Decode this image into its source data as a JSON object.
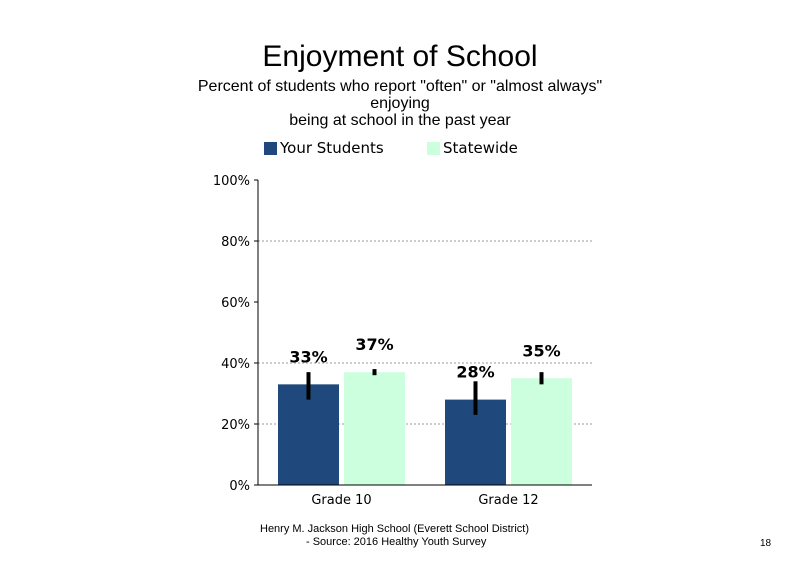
{
  "chart_data": {
    "type": "bar",
    "title": "Enjoyment of School",
    "subtitle_lines": [
      "Percent of students  who report \"often\" or \"almost always\"",
      "enjoying",
      "being at school in the past year"
    ],
    "categories": [
      "Grade 10",
      "Grade 12"
    ],
    "series": [
      {
        "name": "Your Students",
        "color": "#1F497D",
        "values": [
          33,
          28
        ],
        "labels": [
          "33%",
          "28%"
        ],
        "error_low": [
          28,
          23
        ],
        "error_high": [
          37,
          34
        ]
      },
      {
        "name": "Statewide",
        "color": "#CCFFDD",
        "values": [
          37,
          35
        ],
        "labels": [
          "37%",
          "35%"
        ],
        "error_low": [
          36,
          33
        ],
        "error_high": [
          38,
          37
        ]
      }
    ],
    "y_ticks": [
      {
        "value": 0,
        "label": "0%"
      },
      {
        "value": 20,
        "label": "20%"
      },
      {
        "value": 40,
        "label": "40%"
      },
      {
        "value": 60,
        "label": "60%"
      },
      {
        "value": 80,
        "label": "80%"
      },
      {
        "value": 100,
        "label": "100%"
      }
    ],
    "ylim": [
      0,
      100
    ],
    "gridlines": [
      20,
      40,
      80
    ],
    "legend_position": "top"
  },
  "footer": {
    "line1": "Henry M.  Jackson High  School (Everett School District)",
    "line2": "- Source: 2016 Healthy  Youth Survey"
  },
  "page_number": "18"
}
